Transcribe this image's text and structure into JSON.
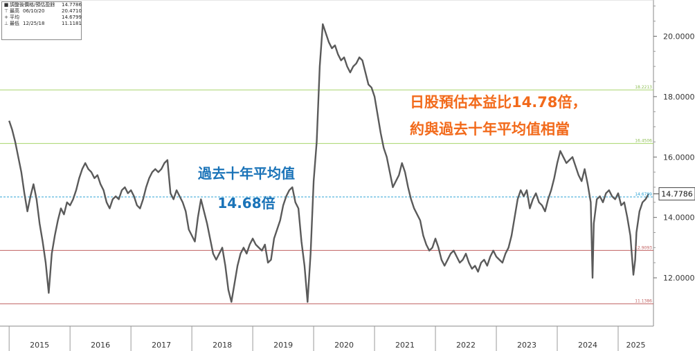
{
  "legend": {
    "rows": [
      {
        "icon": "■",
        "name": "調整後價格/預估盈餘",
        "date": "",
        "value": "14.7786"
      },
      {
        "icon": "⊤",
        "name": "最高",
        "date": "06/10/20",
        "value": "20.4710"
      },
      {
        "icon": "+",
        "name": "平均",
        "date": "",
        "value": "14.6799"
      },
      {
        "icon": "⊥",
        "name": "最低",
        "date": "12/25/18",
        "value": "11.1181"
      }
    ]
  },
  "annotations": {
    "orange_line1": "日股預估本益比14.78倍，",
    "orange_line2": "約與過去十年平均值相當",
    "blue_line1": "過去十年平均值",
    "blue_line2": "14.68倍"
  },
  "colors": {
    "series": "#5a5a5a",
    "band_upper": "#a6d46a",
    "mean": "#2ba3d6",
    "band_lower": "#c06060",
    "orange_text": "#f26a1b",
    "blue_text": "#1a73b8"
  },
  "chart_data": {
    "type": "line",
    "ylim": [
      10.4,
      21.2
    ],
    "yticks": [
      "12.0000",
      "14.0000",
      "16.0000",
      "18.0000",
      "20.0000"
    ],
    "ytick_values": [
      12,
      14,
      16,
      18,
      20
    ],
    "x_labels": [
      "2015",
      "2016",
      "2017",
      "2018",
      "2019",
      "2020",
      "2021",
      "2022",
      "2023",
      "2024",
      "2025"
    ],
    "current_value_label": "14.7786",
    "reference_lines": [
      {
        "label": "18.2213",
        "value": 18.2213,
        "kind": "upper"
      },
      {
        "label": "16.4506",
        "value": 16.4506,
        "kind": "upper"
      },
      {
        "label": "14.6799",
        "value": 14.6799,
        "kind": "mean"
      },
      {
        "label": "12.9093",
        "value": 12.9093,
        "kind": "lower"
      },
      {
        "label": "11.1386",
        "value": 11.1386,
        "kind": "lower"
      }
    ],
    "series": [
      {
        "x": [
          2015.0,
          2015.05,
          2015.1,
          2015.15,
          2015.2,
          2015.25,
          2015.3,
          2015.35,
          2015.4,
          2015.45,
          2015.5,
          2015.55,
          2015.6,
          2015.65,
          2015.7,
          2015.75,
          2015.8,
          2015.85,
          2015.9,
          2015.95,
          2016.0,
          2016.05,
          2016.1,
          2016.15,
          2016.2,
          2016.25,
          2016.3,
          2016.35,
          2016.4,
          2016.45,
          2016.5,
          2016.55,
          2016.6,
          2016.65,
          2016.7,
          2016.75,
          2016.8,
          2016.85,
          2016.9,
          2016.95,
          2017.0,
          2017.05,
          2017.1,
          2017.15,
          2017.2,
          2017.25,
          2017.3,
          2017.35,
          2017.4,
          2017.45,
          2017.5,
          2017.55,
          2017.6,
          2017.65,
          2017.7,
          2017.75,
          2017.8,
          2017.85,
          2017.9,
          2017.95,
          2018.0,
          2018.05,
          2018.1,
          2018.15,
          2018.2,
          2018.25,
          2018.3,
          2018.35,
          2018.4,
          2018.45,
          2018.5,
          2018.55,
          2018.6,
          2018.65,
          2018.7,
          2018.75,
          2018.8,
          2018.85,
          2018.9,
          2018.95,
          2019.0,
          2019.05,
          2019.1,
          2019.15,
          2019.2,
          2019.25,
          2019.3,
          2019.35,
          2019.4,
          2019.45,
          2019.5,
          2019.55,
          2019.6,
          2019.65,
          2019.7,
          2019.75,
          2019.8,
          2019.85,
          2019.9,
          2019.95,
          2020.0,
          2020.05,
          2020.1,
          2020.15,
          2020.2,
          2020.25,
          2020.3,
          2020.35,
          2020.4,
          2020.45,
          2020.5,
          2020.55,
          2020.6,
          2020.65,
          2020.7,
          2020.75,
          2020.8,
          2020.85,
          2020.9,
          2020.95,
          2021.0,
          2021.05,
          2021.1,
          2021.15,
          2021.2,
          2021.25,
          2021.3,
          2021.35,
          2021.4,
          2021.45,
          2021.5,
          2021.55,
          2021.6,
          2021.65,
          2021.7,
          2021.75,
          2021.8,
          2021.85,
          2021.9,
          2021.95,
          2022.0,
          2022.05,
          2022.1,
          2022.15,
          2022.2,
          2022.25,
          2022.3,
          2022.35,
          2022.4,
          2022.45,
          2022.5,
          2022.55,
          2022.6,
          2022.65,
          2022.7,
          2022.75,
          2022.8,
          2022.85,
          2022.9,
          2022.95,
          2023.0,
          2023.05,
          2023.1,
          2023.15,
          2023.2,
          2023.25,
          2023.3,
          2023.35,
          2023.4,
          2023.45,
          2023.5,
          2023.55,
          2023.6,
          2023.65,
          2023.7,
          2023.75,
          2023.8,
          2023.85,
          2023.9,
          2023.95,
          2024.0,
          2024.05,
          2024.1,
          2024.15,
          2024.2,
          2024.25,
          2024.3,
          2024.35,
          2024.4,
          2024.45,
          2024.5,
          2024.55,
          2024.58,
          2024.6,
          2024.65,
          2024.7,
          2024.75,
          2024.8,
          2024.85,
          2024.9,
          2024.95,
          2025.0,
          2025.05,
          2025.1,
          2025.15,
          2025.2,
          2025.25,
          2025.28,
          2025.3,
          2025.35,
          2025.4,
          2025.45,
          2025.5
        ],
        "y": [
          17.2,
          16.9,
          16.5,
          16.0,
          15.5,
          14.8,
          14.2,
          14.7,
          15.1,
          14.6,
          13.8,
          13.2,
          12.5,
          11.5,
          12.8,
          13.4,
          13.9,
          14.3,
          14.1,
          14.5,
          14.4,
          14.6,
          14.9,
          15.3,
          15.6,
          15.8,
          15.6,
          15.5,
          15.3,
          15.4,
          15.1,
          14.9,
          14.5,
          14.3,
          14.6,
          14.7,
          14.6,
          14.9,
          15.0,
          14.8,
          14.9,
          14.7,
          14.4,
          14.3,
          14.6,
          15.0,
          15.3,
          15.5,
          15.6,
          15.5,
          15.6,
          15.8,
          15.9,
          14.8,
          14.6,
          14.9,
          14.7,
          14.5,
          14.2,
          13.6,
          13.4,
          13.2,
          14.0,
          14.6,
          14.2,
          13.8,
          13.3,
          12.8,
          12.6,
          12.8,
          13.0,
          12.4,
          11.6,
          11.2,
          11.8,
          12.4,
          12.8,
          13.0,
          12.8,
          13.1,
          13.3,
          13.1,
          13.0,
          12.9,
          13.1,
          12.5,
          12.6,
          13.3,
          13.6,
          13.9,
          14.4,
          14.7,
          14.9,
          15.0,
          14.5,
          14.3,
          13.2,
          12.4,
          11.2,
          12.8,
          15.2,
          16.5,
          19.0,
          20.4,
          20.1,
          19.8,
          19.6,
          19.7,
          19.4,
          19.2,
          19.3,
          19.0,
          18.8,
          19.0,
          19.1,
          19.3,
          19.2,
          18.8,
          18.4,
          18.3,
          18.0,
          17.4,
          16.8,
          16.3,
          16.0,
          15.5,
          15.0,
          15.2,
          15.4,
          15.8,
          15.5,
          15.0,
          14.6,
          14.3,
          14.1,
          13.9,
          13.4,
          13.1,
          12.9,
          13.0,
          13.3,
          13.0,
          12.6,
          12.4,
          12.6,
          12.8,
          12.9,
          12.7,
          12.5,
          12.6,
          12.8,
          12.5,
          12.3,
          12.4,
          12.2,
          12.5,
          12.6,
          12.4,
          12.7,
          12.9,
          12.7,
          12.6,
          12.5,
          12.8,
          13.0,
          13.4,
          14.0,
          14.6,
          14.9,
          14.7,
          14.9,
          14.3,
          14.6,
          14.8,
          14.5,
          14.4,
          14.2,
          14.6,
          14.9,
          15.3,
          15.8,
          16.2,
          16.0,
          15.8,
          15.9,
          16.0,
          15.7,
          15.4,
          15.2,
          15.6,
          15.1,
          14.5,
          12.0,
          13.8,
          14.6,
          14.7,
          14.5,
          14.8,
          14.9,
          14.7,
          14.6,
          14.8,
          14.4,
          14.5,
          14.0,
          13.4,
          12.1,
          12.6,
          13.5,
          14.2,
          14.5,
          14.6,
          14.78
        ]
      }
    ]
  }
}
